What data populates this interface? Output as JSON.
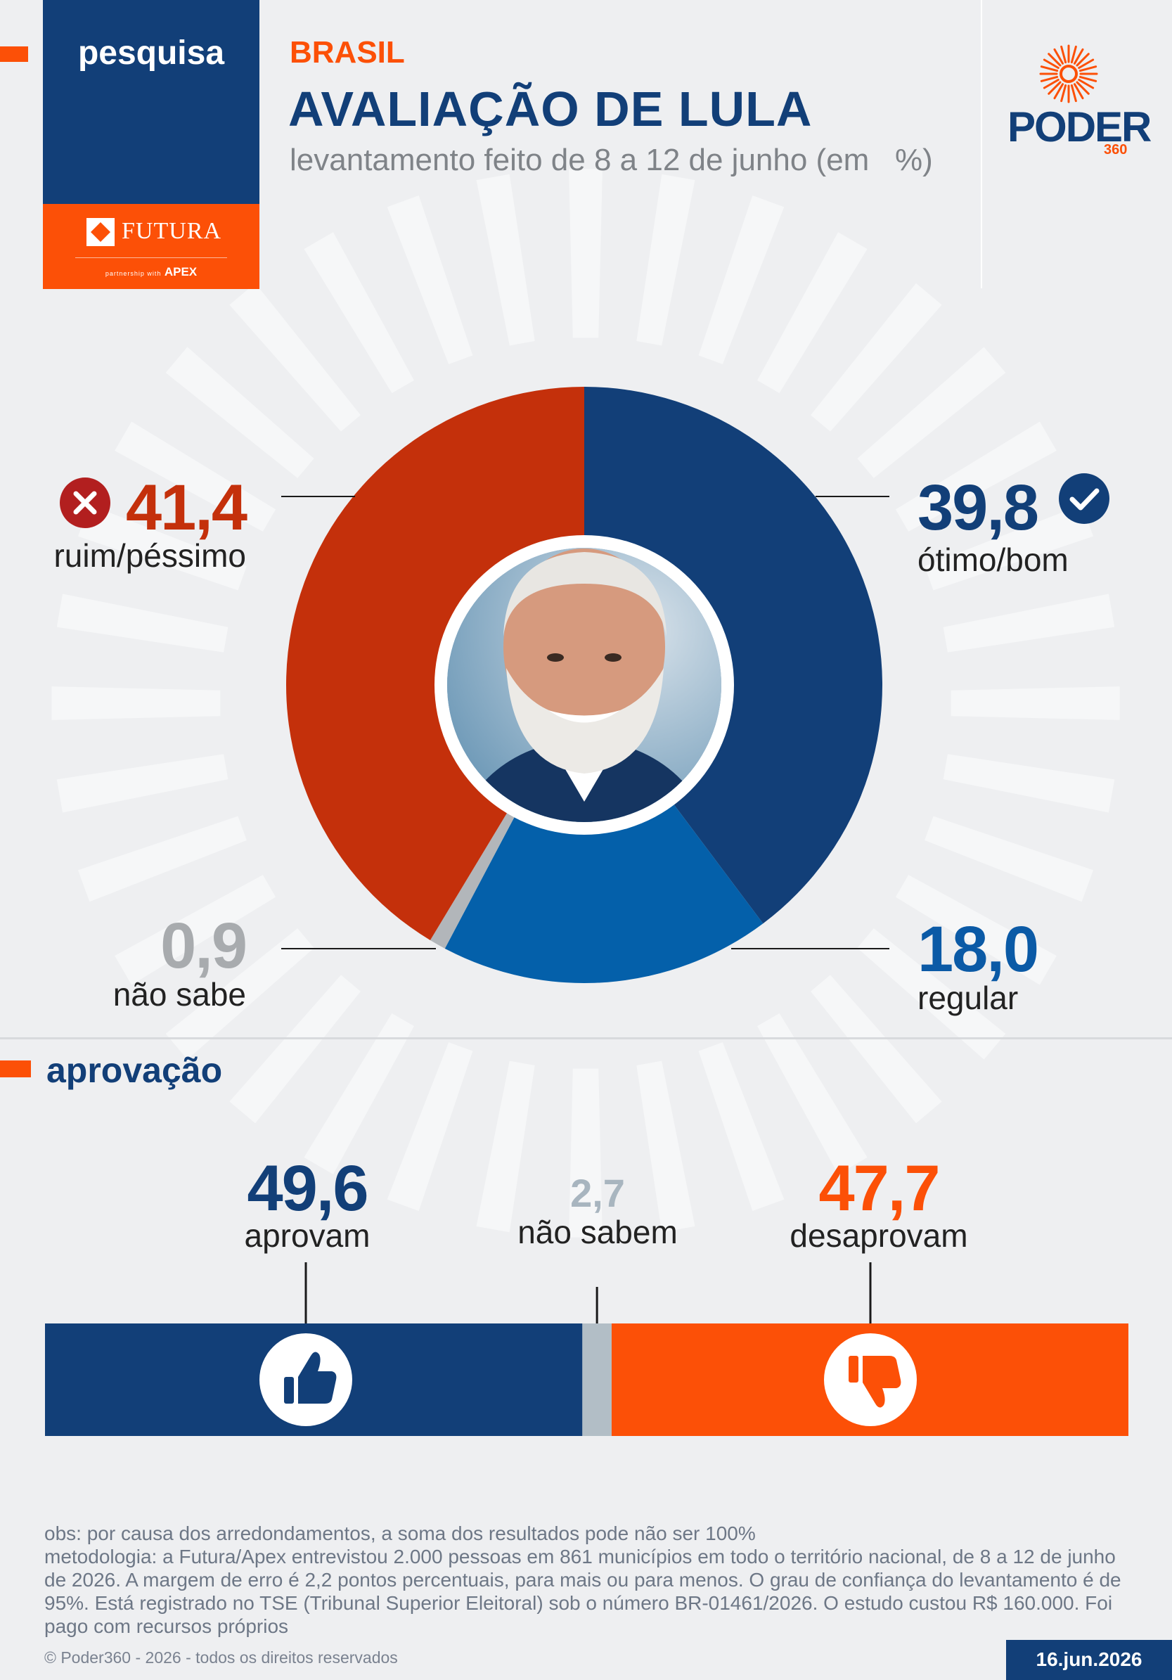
{
  "header": {
    "tag": "pesquisa",
    "region": "BRASIL",
    "title": "AVALIAÇÃO DE LULA",
    "subtitle": "levantamento feito de 8 a 12 de junho (em   %)",
    "sponsor_logo": "FUTURA",
    "sponsor_partnership": "partnership with",
    "sponsor_partner": "APEX",
    "publisher": "PODER",
    "publisher_sub": "360"
  },
  "chart_data": [
    {
      "type": "pie",
      "variant": "donut",
      "title": "",
      "slices": [
        {
          "label": "ótimo/bom",
          "value": 39.8,
          "display": "39,8",
          "color": "#123f78",
          "icon": "check-circle-icon"
        },
        {
          "label": "regular",
          "value": 18.0,
          "display": "18,0",
          "color": "#0460aa"
        },
        {
          "label": "não sabe",
          "value": 0.9,
          "display": "0,9",
          "color": "#b2b6ba"
        },
        {
          "label": "ruim/péssimo",
          "value": 41.4,
          "display": "41,4",
          "color": "#c4300b",
          "icon": "x-circle-icon"
        }
      ],
      "center_image": "portrait-photo"
    },
    {
      "type": "bar",
      "variant": "stacked-100",
      "title": "aprovação",
      "segments": [
        {
          "label": "aprovam",
          "value": 49.6,
          "display": "49,6",
          "color": "#123f78",
          "icon": "thumbs-up-icon"
        },
        {
          "label": "não sabem",
          "value": 2.7,
          "display": "2,7",
          "color": "#b2bec6"
        },
        {
          "label": "desaprovam",
          "value": 47.7,
          "display": "47,7",
          "color": "#fc5007",
          "icon": "thumbs-down-icon"
        }
      ]
    }
  ],
  "footer": {
    "obs": "obs: por causa dos arredondamentos, a soma dos resultados pode não ser 100%",
    "method": "metodologia: a Futura/Apex entrevistou 2.000 pessoas em 861 municípios em todo o território nacional, de 8 a 12 de junho de 2026. A margem de erro é 2,2 pontos percentuais, para mais ou para menos. O grau de confiança do levantamento é de 95%. Está registrado no TSE (Tribunal Superior Eleitoral) sob o número BR-01461/2026. O estudo custou R$ 160.000. Foi pago com recursos próprios",
    "copyright": "© Poder360 - 2026 - todos os direitos reservados",
    "date": "16.jun.2026"
  },
  "colors": {
    "navy": "#123f78",
    "orange": "#fc5007",
    "red": "#c4300b",
    "blue": "#0460aa",
    "gray": "#b2b6ba",
    "background": "#eeeff1"
  }
}
